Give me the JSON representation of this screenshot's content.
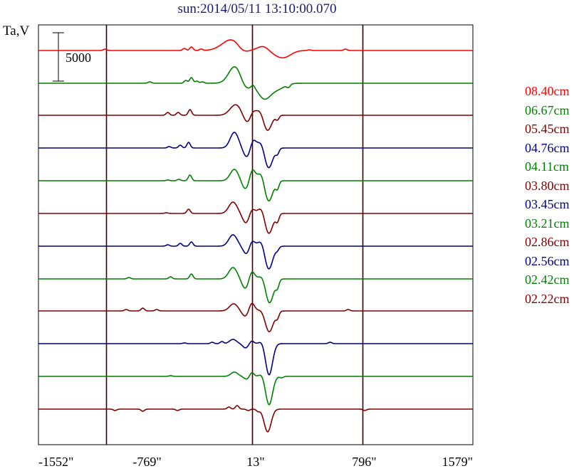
{
  "chart_data": {
    "type": "line",
    "title": "sun:2014/05/11 13:10:00.070",
    "ylabel": "Ta,V",
    "x_ticks": [
      "-1552\"",
      "-769\"",
      "13\"",
      "796\"",
      "1579\""
    ],
    "x_tick_values": [
      -1552,
      -769,
      13,
      796,
      1579
    ],
    "xlim": [
      -1552,
      1579
    ],
    "vertical_markers": [
      -1063,
      -11,
      781
    ],
    "scale_bar": {
      "label": "5000",
      "value": 5000
    },
    "grid": false,
    "legend_placement": "right",
    "series": [
      {
        "name": "08.40cm",
        "color": "#ff0000",
        "baseline": 71,
        "features": [
          [
            -1072,
            -2
          ],
          [
            -500,
            -3
          ],
          [
            -450,
            -5
          ],
          [
            -380,
            -2
          ],
          [
            -155,
            -16,
            70
          ],
          [
            -80,
            8,
            40
          ],
          [
            70,
            -7,
            40
          ],
          [
            150,
            4,
            60
          ],
          [
            220,
            8,
            50
          ],
          [
            400,
            -1
          ],
          [
            660,
            -2
          ]
        ]
      },
      {
        "name": "06.67cm",
        "color": "#008000",
        "baseline": 117,
        "features": [
          [
            -750,
            -2
          ],
          [
            -490,
            -4
          ],
          [
            -450,
            -8
          ],
          [
            -410,
            -3
          ],
          [
            -370,
            -2
          ],
          [
            -135,
            -24,
            45
          ],
          [
            -60,
            10,
            35
          ],
          [
            -5,
            -4
          ],
          [
            75,
            21,
            45
          ],
          [
            170,
            8,
            50
          ],
          [
            250,
            4
          ]
        ]
      },
      {
        "name": "05.45cm",
        "color": "#800000",
        "baseline": 162,
        "features": [
          [
            -620,
            -4
          ],
          [
            -545,
            -4
          ],
          [
            -460,
            -8
          ],
          [
            -130,
            -15,
            40
          ],
          [
            -45,
            12,
            30
          ],
          [
            -10,
            -8,
            20
          ],
          [
            50,
            -10,
            30
          ],
          [
            95,
            24,
            30
          ],
          [
            170,
            6
          ]
        ]
      },
      {
        "name": "04.76cm",
        "color": "#000080",
        "baseline": 208,
        "features": [
          [
            -610,
            -2
          ],
          [
            -530,
            -4
          ],
          [
            -470,
            -8
          ],
          [
            -140,
            -22,
            30
          ],
          [
            -50,
            13,
            25
          ],
          [
            -5,
            -12,
            20
          ],
          [
            55,
            -11,
            25
          ],
          [
            105,
            29,
            30
          ],
          [
            170,
            7
          ]
        ]
      },
      {
        "name": "04.11cm",
        "color": "#008000",
        "baseline": 254,
        "features": [
          [
            -620,
            -1
          ],
          [
            -540,
            -2
          ],
          [
            -460,
            -8
          ],
          [
            -140,
            -16,
            30
          ],
          [
            -60,
            12,
            25
          ],
          [
            -10,
            -16,
            20
          ],
          [
            55,
            -14,
            25
          ],
          [
            105,
            30,
            30
          ],
          [
            170,
            10
          ]
        ]
      },
      {
        "name": "03.80cm",
        "color": "#800000",
        "baseline": 300,
        "features": [
          [
            -630,
            -1
          ],
          [
            -470,
            -6
          ],
          [
            -150,
            -16,
            30
          ],
          [
            -55,
            14,
            25
          ],
          [
            -15,
            -8,
            20
          ],
          [
            60,
            -12,
            25
          ],
          [
            105,
            30,
            30
          ],
          [
            170,
            10
          ]
        ]
      },
      {
        "name": "03.45cm",
        "color": "#000080",
        "baseline": 346,
        "features": [
          [
            -620,
            -2
          ],
          [
            -530,
            -4
          ],
          [
            -450,
            -6
          ],
          [
            -150,
            -16,
            30
          ],
          [
            -50,
            12,
            25
          ],
          [
            -15,
            -10,
            20
          ],
          [
            60,
            -12,
            25
          ],
          [
            105,
            34,
            30
          ],
          [
            170,
            4
          ]
        ]
      },
      {
        "name": "03.21cm",
        "color": "#008000",
        "baseline": 392,
        "features": [
          [
            -900,
            -2
          ],
          [
            -600,
            -3
          ],
          [
            -450,
            -7
          ],
          [
            -150,
            -16,
            30
          ],
          [
            -60,
            14,
            25
          ],
          [
            -15,
            -12,
            20
          ],
          [
            70,
            -10,
            25
          ],
          [
            110,
            36,
            30
          ],
          [
            170,
            10
          ]
        ]
      },
      {
        "name": "02.86cm",
        "color": "#800000",
        "baseline": 437,
        "features": [
          [
            -920,
            -2
          ],
          [
            -800,
            -4
          ],
          [
            -700,
            -2
          ],
          [
            -145,
            -10,
            30
          ],
          [
            -60,
            8,
            25
          ],
          [
            -15,
            -12,
            20
          ],
          [
            65,
            -4,
            25
          ],
          [
            110,
            30,
            30
          ],
          [
            170,
            8
          ],
          [
            680,
            -2
          ]
        ]
      },
      {
        "name": "02.56cm",
        "color": "#000080",
        "baseline": 483,
        "features": [
          [
            -500,
            -1
          ],
          [
            -300,
            -2
          ],
          [
            -230,
            -3
          ],
          [
            -150,
            -6,
            25
          ],
          [
            -60,
            6,
            20
          ],
          [
            -15,
            -4,
            15
          ],
          [
            60,
            -4,
            20
          ],
          [
            110,
            44,
            25
          ],
          [
            550,
            -2
          ]
        ]
      },
      {
        "name": "02.42cm",
        "color": "#008000",
        "baseline": 529,
        "features": [
          [
            -600,
            -1
          ],
          [
            -140,
            -6,
            25
          ],
          [
            -50,
            4,
            20
          ],
          [
            -15,
            -6,
            15
          ],
          [
            60,
            -4,
            20
          ],
          [
            110,
            40,
            25
          ],
          [
            200,
            2
          ]
        ]
      },
      {
        "name": "02.22cm",
        "color": "#800000",
        "baseline": 575,
        "features": [
          [
            -1000,
            2
          ],
          [
            -800,
            3
          ],
          [
            -550,
            2
          ],
          [
            -180,
            -3
          ],
          [
            -120,
            -5
          ],
          [
            -40,
            2
          ],
          [
            30,
            3
          ],
          [
            100,
            32,
            25
          ],
          [
            800,
            2
          ]
        ]
      }
    ]
  }
}
